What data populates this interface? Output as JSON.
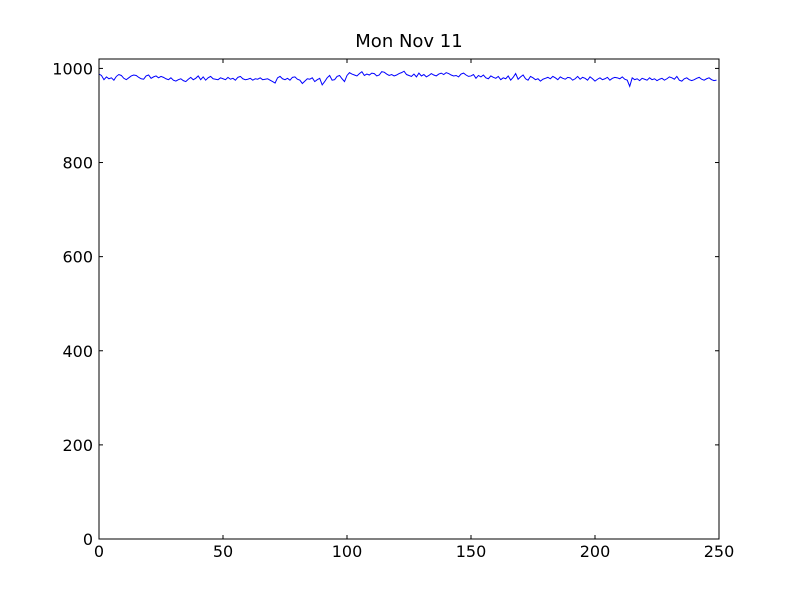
{
  "chart_data": {
    "type": "line",
    "title": "Mon Nov 11",
    "x": [
      0,
      1,
      2,
      3,
      4,
      5,
      6,
      7,
      8,
      9,
      10,
      11,
      12,
      13,
      14,
      15,
      16,
      17,
      18,
      19,
      20,
      21,
      22,
      23,
      24,
      25,
      26,
      27,
      28,
      29,
      30,
      31,
      32,
      33,
      34,
      35,
      36,
      37,
      38,
      39,
      40,
      41,
      42,
      43,
      44,
      45,
      46,
      47,
      48,
      49,
      50,
      51,
      52,
      53,
      54,
      55,
      56,
      57,
      58,
      59,
      60,
      61,
      62,
      63,
      64,
      65,
      66,
      67,
      68,
      69,
      70,
      71,
      72,
      73,
      74,
      75,
      76,
      77,
      78,
      79,
      80,
      81,
      82,
      83,
      84,
      85,
      86,
      87,
      88,
      89,
      90,
      91,
      92,
      93,
      94,
      95,
      96,
      97,
      98,
      99,
      100,
      101,
      102,
      103,
      104,
      105,
      106,
      107,
      108,
      109,
      110,
      111,
      112,
      113,
      114,
      115,
      116,
      117,
      118,
      119,
      120,
      121,
      122,
      123,
      124,
      125,
      126,
      127,
      128,
      129,
      130,
      131,
      132,
      133,
      134,
      135,
      136,
      137,
      138,
      139,
      140,
      141,
      142,
      143,
      144,
      145,
      146,
      147,
      148,
      149,
      150,
      151,
      152,
      153,
      154,
      155,
      156,
      157,
      158,
      159,
      160,
      161,
      162,
      163,
      164,
      165,
      166,
      167,
      168,
      169,
      170,
      171,
      172,
      173,
      174,
      175,
      176,
      177,
      178,
      179,
      180,
      181,
      182,
      183,
      184,
      185,
      186,
      187,
      188,
      189,
      190,
      191,
      192,
      193,
      194,
      195,
      196,
      197,
      198,
      199,
      200,
      201,
      202,
      203,
      204,
      205,
      206,
      207,
      208,
      209,
      210,
      211,
      212,
      213,
      214,
      215,
      216,
      217,
      218,
      219,
      220,
      221,
      222,
      223,
      224,
      225,
      226,
      227,
      228,
      229,
      230,
      231,
      232,
      233,
      234,
      235,
      236,
      237,
      238,
      239,
      240,
      241,
      242,
      243,
      244,
      245,
      246,
      247,
      248,
      249
    ],
    "series": [
      {
        "color": "#0000ff",
        "values": [
          988,
          985,
          976,
          982,
          978,
          980,
          975,
          983,
          987,
          985,
          979,
          976,
          980,
          984,
          986,
          985,
          981,
          978,
          977,
          984,
          986,
          979,
          982,
          984,
          980,
          983,
          981,
          978,
          976,
          980,
          975,
          973,
          976,
          978,
          974,
          972,
          977,
          981,
          976,
          979,
          984,
          976,
          982,
          975,
          980,
          983,
          978,
          977,
          976,
          980,
          978,
          976,
          981,
          977,
          979,
          975,
          981,
          983,
          978,
          976,
          977,
          979,
          975,
          978,
          977,
          980,
          976,
          977,
          978,
          975,
          972,
          969,
          980,
          983,
          978,
          976,
          979,
          975,
          981,
          982,
          977,
          975,
          968,
          973,
          978,
          977,
          980,
          972,
          976,
          979,
          965,
          972,
          980,
          985,
          975,
          976,
          983,
          985,
          978,
          972,
          985,
          991,
          988,
          986,
          984,
          989,
          993,
          985,
          988,
          986,
          990,
          989,
          984,
          986,
          993,
          992,
          988,
          985,
          987,
          984,
          986,
          989,
          991,
          994,
          987,
          985,
          983,
          988,
          982,
          990,
          984,
          987,
          982,
          985,
          989,
          986,
          984,
          988,
          990,
          987,
          991,
          989,
          986,
          984,
          985,
          982,
          988,
          990,
          986,
          983,
          984,
          987,
          979,
          985,
          982,
          986,
          980,
          978,
          984,
          981,
          979,
          983,
          976,
          980,
          978,
          984,
          975,
          981,
          989,
          977,
          982,
          986,
          978,
          975,
          983,
          980,
          976,
          978,
          973,
          977,
          979,
          981,
          978,
          983,
          980,
          976,
          982,
          979,
          977,
          981,
          980,
          975,
          978,
          983,
          977,
          981,
          979,
          975,
          982,
          978,
          973,
          977,
          980,
          976,
          978,
          981,
          975,
          979,
          981,
          980,
          978,
          982,
          977,
          975,
          962,
          980,
          976,
          978,
          974,
          979,
          977,
          975,
          980,
          976,
          978,
          974,
          977,
          979,
          975,
          978,
          982,
          980,
          977,
          983,
          975,
          973,
          978,
          980,
          976,
          974,
          976,
          979,
          981,
          977,
          975,
          978,
          980,
          976,
          974,
          975
        ]
      }
    ],
    "xlim": [
      0,
      250
    ],
    "xticks": [
      0,
      50,
      100,
      150,
      200,
      250
    ],
    "ylim": [
      0,
      1020
    ],
    "yticks": [
      0,
      200,
      400,
      600,
      800,
      1000
    ]
  }
}
